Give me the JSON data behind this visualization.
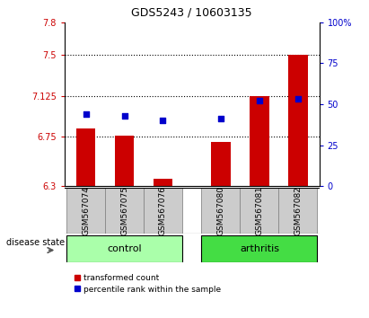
{
  "title": "GDS5243 / 10603135",
  "samples": [
    "GSM567074",
    "GSM567075",
    "GSM567076",
    "GSM567080",
    "GSM567081",
    "GSM567082"
  ],
  "red_values": [
    6.83,
    6.76,
    6.37,
    6.7,
    7.125,
    7.5
  ],
  "blue_values_pct": [
    44,
    43,
    40,
    41,
    52,
    53
  ],
  "ylim_left": [
    6.3,
    7.8
  ],
  "ylim_right": [
    0,
    100
  ],
  "yticks_left": [
    6.3,
    6.75,
    7.125,
    7.5,
    7.8
  ],
  "ytick_labels_left": [
    "6.3",
    "6.75",
    "7.125",
    "7.5",
    "7.8"
  ],
  "yticks_right": [
    0,
    25,
    50,
    75,
    100
  ],
  "ytick_labels_right": [
    "0",
    "25",
    "50",
    "75",
    "100%"
  ],
  "hlines": [
    6.75,
    7.125,
    7.5
  ],
  "group_control": {
    "label": "control",
    "samples": [
      0,
      1,
      2
    ],
    "color": "#aaffaa"
  },
  "group_arthritis": {
    "label": "arthritis",
    "samples": [
      3,
      4,
      5
    ],
    "color": "#44dd44"
  },
  "disease_state_label": "disease state",
  "red_color": "#CC0000",
  "blue_color": "#0000CC",
  "bar_width": 0.5,
  "legend_red": "transformed count",
  "legend_blue": "percentile rank within the sample",
  "x_positions": [
    0,
    1,
    2,
    3.5,
    4.5,
    5.5
  ],
  "xlim": [
    -0.55,
    6.05
  ],
  "gray_box_color": "#cccccc"
}
